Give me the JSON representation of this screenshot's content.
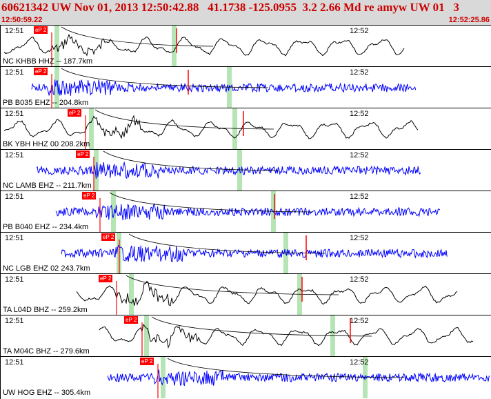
{
  "header": {
    "title": "60621342 UW Nov 01, 2013 12:50:42.88   41.1738 -125.0955  3.2 2.66 Md re amyw UW 01   3",
    "start_time": "12:50:59.22",
    "end_time": "12:52:25.86"
  },
  "tick_labels": {
    "left": "12:51",
    "right": "12:52"
  },
  "pick_label": "eP 2",
  "colors": {
    "header_bg": "#d9d9d9",
    "title": "#cc0000",
    "short_period": "#0000ff",
    "broadband": "#000000",
    "pick": "#ff0000",
    "band": "#a8e0a8"
  },
  "traces": [
    {
      "label": "NC KHBB HHZ -- 187.7km",
      "type": "broadband"
    },
    {
      "label": "PB B035 EHZ -- 204.8km",
      "type": "short-period"
    },
    {
      "label": "BK YBH HHZ 00 208.2km",
      "type": "broadband"
    },
    {
      "label": "NC LAMB EHZ -- 211.7km",
      "type": "short-period"
    },
    {
      "label": "PB B040 EHZ -- 234.4km",
      "type": "short-period"
    },
    {
      "label": "NC LGB EHZ 02 243.7km",
      "type": "short-period"
    },
    {
      "label": "TA L04D BHZ -- 259.2km",
      "type": "broadband"
    },
    {
      "label": "TA M04C BHZ -- 279.6km",
      "type": "broadband"
    },
    {
      "label": "UW HOG EHZ -- 305.4km",
      "type": "short-period"
    }
  ]
}
